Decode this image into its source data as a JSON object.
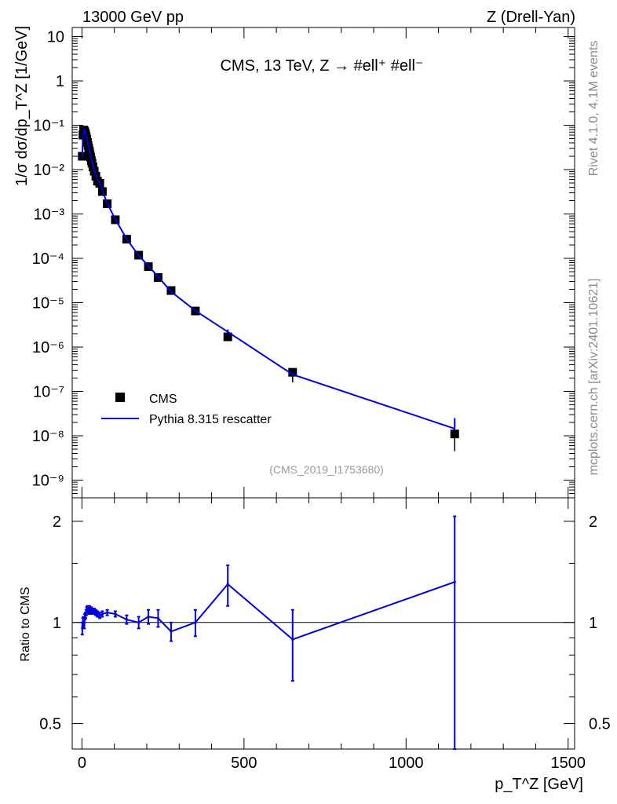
{
  "header": {
    "left_label": "13000 GeV pp",
    "right_label": "Z (Drell-Yan)"
  },
  "side_labels": {
    "version": "Rivet 4.1.0,  4.1M events",
    "source": "mcplots.cern.ch [arXiv:2401.10621]"
  },
  "chart_data": [
    {
      "type": "scatter",
      "panel": "main",
      "title": "CMS, 13 TeV, Z →  #ell⁺ #ell⁻",
      "ylabel": "1/σ dσ/dp_T^Z [1/GeV]",
      "yscale": "log",
      "ylim": [
        4e-10,
        16
      ],
      "xlim": [
        -30,
        1520
      ],
      "y_tick_labels": [
        "10",
        "1",
        "10⁻¹",
        "10⁻²",
        "10⁻³",
        "10⁻⁴",
        "10⁻⁵",
        "10⁻⁶",
        "10⁻⁷",
        "10⁻⁸",
        "10⁻⁹"
      ],
      "y_tick_values": [
        10,
        1,
        0.1,
        0.01,
        0.001,
        0.0001,
        1e-05,
        1e-06,
        1e-07,
        1e-08,
        1e-09
      ],
      "annotation": "(CMS_2019_I1753680)",
      "legend": {
        "placement": "lower-left",
        "entries": [
          "CMS",
          "Pythia 8.315 rescatter"
        ]
      },
      "series": [
        {
          "name": "CMS",
          "style": "marker",
          "x": [
            1,
            3,
            5,
            7,
            9,
            11,
            13,
            15,
            17,
            19,
            21,
            23,
            25,
            27,
            29,
            31,
            34,
            38,
            43,
            48,
            55,
            63,
            78,
            103,
            138,
            175,
            205,
            235,
            275,
            350,
            450,
            650,
            1150
          ],
          "y": [
            0.02,
            0.06,
            0.078,
            0.075,
            0.07,
            0.063,
            0.055,
            0.048,
            0.041,
            0.035,
            0.03,
            0.026,
            0.022,
            0.019,
            0.016,
            0.014,
            0.0115,
            0.0092,
            0.0071,
            0.0055,
            0.0049,
            0.0032,
            0.0017,
            0.00074,
            0.00027,
            0.000118,
            6.5e-05,
            3.7e-05,
            1.88e-05,
            6.5e-06,
            1.7e-06,
            2.7e-07,
            1.1e-08
          ],
          "yerr_up": [
            0,
            0,
            0,
            0,
            0,
            0,
            0,
            0,
            0,
            0,
            0,
            0,
            0,
            0,
            0,
            0,
            0,
            0,
            0,
            0,
            0,
            0,
            0,
            0,
            0,
            0,
            0,
            0,
            0,
            0,
            0,
            5e-08,
            1.3e-08
          ],
          "yerr_down": [
            0,
            0,
            0,
            0,
            0,
            0,
            0,
            0,
            0,
            0,
            0,
            0,
            0,
            0,
            0,
            0,
            0,
            0,
            0,
            0,
            0,
            0,
            0,
            0,
            0,
            0,
            0,
            0,
            0,
            0,
            0,
            1.1e-07,
            6.5e-09
          ]
        },
        {
          "name": "Pythia 8.315 rescatter",
          "style": "line",
          "color": "#0000dd",
          "x": [
            1,
            3,
            5,
            7,
            9,
            11,
            13,
            15,
            17,
            19,
            21,
            23,
            25,
            27,
            29,
            31,
            34,
            38,
            43,
            48,
            55,
            63,
            78,
            103,
            138,
            175,
            205,
            235,
            275,
            350,
            450,
            650,
            1150
          ],
          "y": [
            0.02,
            0.059,
            0.079,
            0.078,
            0.076,
            0.069,
            0.06,
            0.052,
            0.045,
            0.038,
            0.0325,
            0.028,
            0.0238,
            0.0205,
            0.0173,
            0.0151,
            0.0124,
            0.0099,
            0.0076,
            0.0058,
            0.0051,
            0.0033,
            0.00175,
            0.00076,
            0.000272,
            0.000117,
            6.75e-05,
            3.85e-05,
            1.78e-05,
            6.6e-06,
            2.2e-06,
            2.4e-07,
            1.45e-08
          ],
          "yerr_up": [
            0,
            0,
            0,
            0,
            0,
            0,
            0,
            0,
            0,
            0,
            0,
            0,
            0,
            0,
            0,
            0,
            0,
            0,
            0,
            0,
            0,
            0,
            0,
            0,
            0,
            0,
            0,
            0,
            0,
            0,
            3e-07,
            3e-08,
            1.05e-08
          ],
          "yerr_down": [
            0,
            0,
            0,
            0,
            0,
            0,
            0,
            0,
            0,
            0,
            0,
            0,
            0,
            0,
            0,
            0,
            0,
            0,
            0,
            0,
            0,
            0,
            0,
            0,
            0,
            0,
            3e-07,
            3e-08,
            1.05e-08,
            0,
            0,
            0,
            0
          ]
        }
      ]
    },
    {
      "type": "line",
      "panel": "ratio",
      "ylabel": "Ratio to CMS",
      "xlabel": "p_T^Z [GeV]",
      "xlim": [
        -30,
        1520
      ],
      "ylim": [
        0.42,
        2.35
      ],
      "yscale": "log",
      "x_tick_labels": [
        "0",
        "500",
        "1000",
        "1500"
      ],
      "x_tick_values": [
        0,
        500,
        1000,
        1500
      ],
      "y_tick_labels": [
        "2",
        "1",
        "0.5"
      ],
      "y_tick_values": [
        2,
        1,
        0.5
      ],
      "reference_line": 1,
      "series": [
        {
          "name": "Pythia 8.315 rescatter",
          "color": "#0000dd",
          "x": [
            1,
            3,
            5,
            7,
            9,
            11,
            13,
            15,
            17,
            19,
            21,
            23,
            25,
            27,
            29,
            31,
            34,
            38,
            43,
            48,
            55,
            63,
            78,
            103,
            138,
            175,
            205,
            235,
            275,
            350,
            450,
            650,
            1150
          ],
          "y": [
            0.96,
            1.0,
            1.02,
            0.98,
            1.04,
            1.05,
            1.07,
            1.09,
            1.1,
            1.09,
            1.08,
            1.1,
            1.09,
            1.08,
            1.09,
            1.08,
            1.08,
            1.08,
            1.07,
            1.06,
            1.05,
            1.06,
            1.07,
            1.06,
            1.02,
            1.0,
            1.04,
            1.03,
            0.94,
            1.0,
            1.3,
            0.89,
            1.32
          ],
          "err_up": [
            0.04,
            0.03,
            0.02,
            0.02,
            0.02,
            0.02,
            0.02,
            0.02,
            0.02,
            0.02,
            0.02,
            0.02,
            0.02,
            0.02,
            0.02,
            0.02,
            0.02,
            0.02,
            0.02,
            0.02,
            0.02,
            0.02,
            0.02,
            0.02,
            0.03,
            0.04,
            0.05,
            0.06,
            0.06,
            0.09,
            0.18,
            0.2,
            0.75
          ],
          "err_down": [
            0.04,
            0.03,
            0.02,
            0.02,
            0.02,
            0.02,
            0.02,
            0.02,
            0.02,
            0.02,
            0.02,
            0.02,
            0.02,
            0.02,
            0.02,
            0.02,
            0.02,
            0.02,
            0.02,
            0.02,
            0.02,
            0.02,
            0.02,
            0.02,
            0.03,
            0.04,
            0.05,
            0.06,
            0.06,
            0.09,
            0.18,
            0.22,
            0.95
          ]
        }
      ]
    }
  ]
}
